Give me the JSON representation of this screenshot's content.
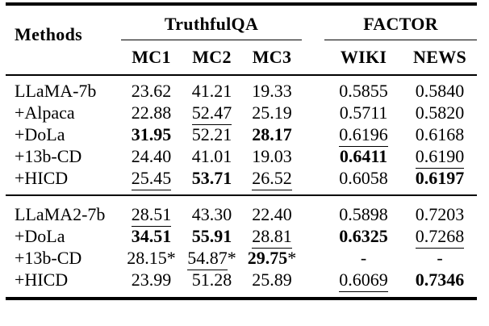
{
  "table": {
    "methods_header": "Methods",
    "groups": [
      {
        "label": "TruthfulQA",
        "columns": [
          "MC1",
          "MC2",
          "MC3"
        ]
      },
      {
        "label": "FACTOR",
        "columns": [
          "WIKI",
          "NEWS"
        ]
      }
    ],
    "blocks": [
      {
        "rows": [
          {
            "method": "LLaMA-7b",
            "cells": [
              {
                "v": "23.62"
              },
              {
                "v": "41.21"
              },
              {
                "v": "19.33"
              },
              {
                "v": "0.5855"
              },
              {
                "v": "0.5840"
              }
            ]
          },
          {
            "method": "+Alpaca",
            "cells": [
              {
                "v": "22.88"
              },
              {
                "v": "52.47",
                "u": true
              },
              {
                "v": "25.19"
              },
              {
                "v": "0.5711"
              },
              {
                "v": "0.5820"
              }
            ]
          },
          {
            "method": "+DoLa",
            "cells": [
              {
                "v": "31.95",
                "b": true
              },
              {
                "v": "52.21"
              },
              {
                "v": "28.17",
                "b": true
              },
              {
                "v": "0.6196",
                "u": true
              },
              {
                "v": "0.6168"
              }
            ]
          },
          {
            "method": "+13b-CD",
            "cells": [
              {
                "v": "24.40"
              },
              {
                "v": "41.01"
              },
              {
                "v": "19.03"
              },
              {
                "v": "0.6411",
                "b": true
              },
              {
                "v": "0.6190",
                "u": true
              }
            ]
          },
          {
            "method": "+HICD",
            "cells": [
              {
                "v": "25.45",
                "u": true
              },
              {
                "v": "53.71",
                "b": true
              },
              {
                "v": "26.52",
                "u": true
              },
              {
                "v": "0.6058"
              },
              {
                "v": "0.6197",
                "b": true
              }
            ]
          }
        ]
      },
      {
        "rows": [
          {
            "method": "LLaMA2-7b",
            "cells": [
              {
                "v": "28.51",
                "u": true
              },
              {
                "v": "43.30"
              },
              {
                "v": "22.40"
              },
              {
                "v": "0.5898"
              },
              {
                "v": "0.7203"
              }
            ]
          },
          {
            "method": "+DoLa",
            "cells": [
              {
                "v": "34.51",
                "b": true
              },
              {
                "v": "55.91",
                "b": true
              },
              {
                "v": "28.81",
                "u": true
              },
              {
                "v": "0.6325",
                "b": true
              },
              {
                "v": "0.7268",
                "u": true
              }
            ]
          },
          {
            "method": "+13b-CD",
            "cells": [
              {
                "v": "28.15",
                "suffix": "*"
              },
              {
                "v": "54.87",
                "u": true,
                "suffix": "*"
              },
              {
                "v": "29.75",
                "b": true,
                "suffix": "*"
              },
              {
                "v": "-"
              },
              {
                "v": "-"
              }
            ]
          },
          {
            "method": "+HICD",
            "cells": [
              {
                "v": "23.99"
              },
              {
                "v": "51.28"
              },
              {
                "v": "25.89"
              },
              {
                "v": "0.6069",
                "u": true
              },
              {
                "v": "0.7346",
                "b": true
              }
            ]
          }
        ]
      }
    ]
  },
  "colors": {
    "text": "#000000",
    "background": "#ffffff",
    "rule": "#000000"
  }
}
